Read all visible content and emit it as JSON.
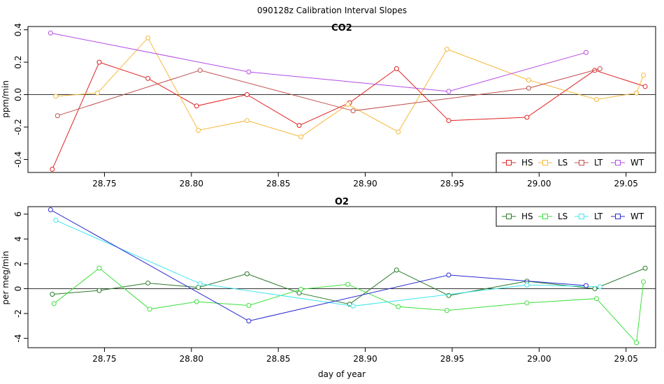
{
  "figure_title": "090128z   Calibration Interval Slopes",
  "chart_data": [
    {
      "type": "line",
      "title": "CO2",
      "xlabel": "",
      "ylabel": "ppm/min",
      "xlim": [
        28.706,
        29.067
      ],
      "ylim": [
        -0.48,
        0.42
      ],
      "xticks": [
        28.75,
        28.8,
        28.85,
        28.9,
        28.95,
        29.0,
        29.05
      ],
      "xtick_labels": [
        "28.75",
        "28.80",
        "28.85",
        "28.90",
        "28.95",
        "29.00",
        "29.05"
      ],
      "yticks": [
        -0.4,
        -0.2,
        0.0,
        0.2,
        0.4
      ],
      "ytick_labels": [
        "-0.4",
        "-0.2",
        "0.0",
        "0.2",
        "0.4"
      ],
      "hline": 0,
      "legend_position": "bottom-right",
      "series": [
        {
          "name": "HS",
          "color": "#df2020",
          "x": [
            28.72,
            28.747,
            28.775,
            28.803,
            28.832,
            28.862,
            28.891,
            28.918,
            28.948,
            28.993,
            29.032,
            29.061
          ],
          "y": [
            -0.46,
            0.2,
            0.1,
            -0.07,
            0.0,
            -0.19,
            -0.05,
            0.16,
            -0.16,
            -0.14,
            0.15,
            0.05
          ]
        },
        {
          "name": "LS",
          "color": "#f5b93a",
          "x": [
            28.722,
            28.746,
            28.775,
            28.804,
            28.832,
            28.863,
            28.89,
            28.919,
            28.947,
            28.994,
            29.033,
            29.056,
            29.06
          ],
          "y": [
            -0.01,
            0.01,
            0.35,
            -0.22,
            -0.16,
            -0.26,
            -0.06,
            -0.23,
            0.28,
            0.09,
            -0.03,
            0.01,
            0.12
          ]
        },
        {
          "name": "LT",
          "color": "#c0504d",
          "x": [
            28.723,
            28.805,
            28.893,
            28.994,
            29.035
          ],
          "y": [
            -0.13,
            0.15,
            -0.1,
            0.04,
            0.16
          ]
        },
        {
          "name": "WT",
          "color": "#b44be6",
          "x": [
            28.719,
            28.833,
            28.948,
            29.027
          ],
          "y": [
            0.38,
            0.14,
            0.02,
            0.26
          ]
        }
      ]
    },
    {
      "type": "line",
      "title": "O2",
      "xlabel": "day of year",
      "ylabel": "per meg/min",
      "xlim": [
        28.706,
        29.067
      ],
      "ylim": [
        -4.75,
        6.6
      ],
      "xticks": [
        28.75,
        28.8,
        28.85,
        28.9,
        28.95,
        29.0,
        29.05
      ],
      "xtick_labels": [
        "28.75",
        "28.80",
        "28.85",
        "28.90",
        "28.95",
        "29.00",
        "29.05"
      ],
      "yticks": [
        -4,
        -2,
        0,
        2,
        4,
        6
      ],
      "ytick_labels": [
        "-4",
        "-2",
        "0",
        "2",
        "4",
        "6"
      ],
      "hline": 0,
      "legend_position": "top-right",
      "series": [
        {
          "name": "HS",
          "color": "#2a7a2a",
          "x": [
            28.72,
            28.747,
            28.775,
            28.804,
            28.832,
            28.862,
            28.891,
            28.918,
            28.948,
            28.993,
            29.032,
            29.061
          ],
          "y": [
            -0.45,
            -0.15,
            0.45,
            0.1,
            1.2,
            -0.35,
            -1.25,
            1.5,
            -0.55,
            0.6,
            0.0,
            1.65
          ]
        },
        {
          "name": "LS",
          "color": "#3ddf3d",
          "x": [
            28.721,
            28.747,
            28.776,
            28.803,
            28.833,
            28.863,
            28.89,
            28.919,
            28.947,
            28.993,
            29.033,
            29.056,
            29.06
          ],
          "y": [
            -1.2,
            1.65,
            -1.65,
            -1.05,
            -1.35,
            -0.05,
            0.35,
            -1.45,
            -1.75,
            -1.15,
            -0.8,
            -4.35,
            0.55
          ]
        },
        {
          "name": "LT",
          "color": "#3fe6ee",
          "x": [
            28.722,
            28.805,
            28.893,
            28.993,
            29.035
          ],
          "y": [
            5.5,
            0.4,
            -1.4,
            0.3,
            0.15
          ]
        },
        {
          "name": "WT",
          "color": "#2a2ad0",
          "x": [
            28.719,
            28.833,
            28.948,
            29.027
          ],
          "y": [
            6.35,
            -2.6,
            1.1,
            0.25
          ]
        }
      ]
    }
  ]
}
